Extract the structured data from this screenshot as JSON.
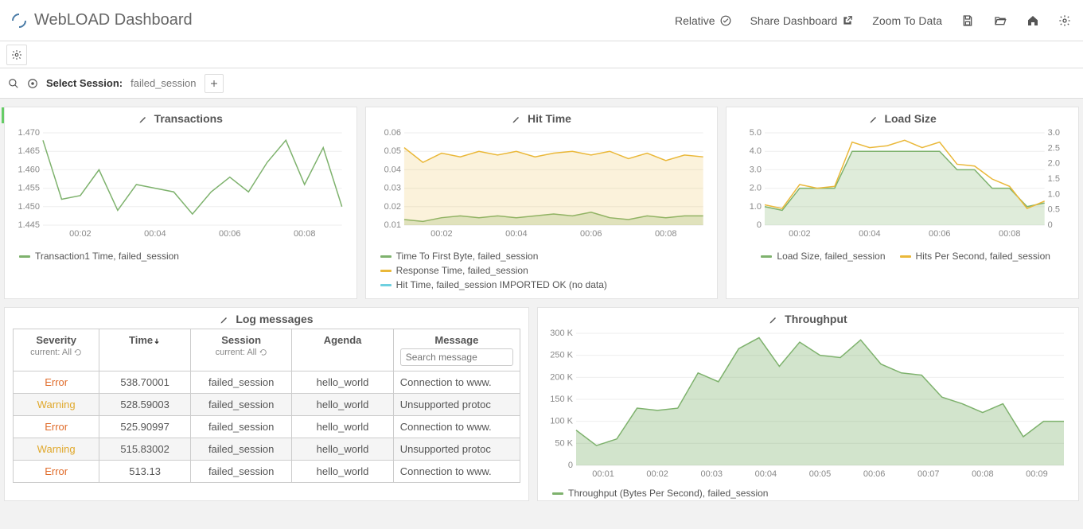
{
  "header": {
    "title": "WebLOAD Dashboard",
    "nav": {
      "relative": "Relative",
      "share": "Share Dashboard",
      "zoom": "Zoom To Data"
    }
  },
  "session": {
    "label": "Select Session:",
    "value": "failed_session"
  },
  "colors": {
    "green": "#7eb26d",
    "yellow": "#eab839",
    "cyan": "#6ed0e0",
    "grid": "#eeeeee",
    "axis": "#999999",
    "fill_green": "rgba(126,178,109,0.25)",
    "fill_yellow": "rgba(234,184,57,0.18)"
  },
  "charts": {
    "transactions": {
      "title": "Transactions",
      "y_ticks": [
        "1.445",
        "1.450",
        "1.455",
        "1.460",
        "1.465",
        "1.470"
      ],
      "y_min": 1.445,
      "y_max": 1.47,
      "x_labels": [
        "00:02",
        "00:04",
        "00:06",
        "00:08"
      ],
      "series": [
        {
          "name": "Transaction1 Time, failed_session",
          "color": "#7eb26d",
          "values": [
            1.468,
            1.452,
            1.453,
            1.46,
            1.449,
            1.456,
            1.455,
            1.454,
            1.448,
            1.454,
            1.458,
            1.454,
            1.462,
            1.468,
            1.456,
            1.466,
            1.45
          ]
        }
      ]
    },
    "hit_time": {
      "title": "Hit Time",
      "y_ticks": [
        "0.01",
        "0.02",
        "0.03",
        "0.04",
        "0.05",
        "0.06"
      ],
      "y_min": 0.01,
      "y_max": 0.06,
      "x_labels": [
        "00:02",
        "00:04",
        "00:06",
        "00:08"
      ],
      "series": [
        {
          "name": "Time To First Byte, failed_session",
          "color": "#7eb26d",
          "fill": "rgba(126,178,109,0.25)",
          "values": [
            0.013,
            0.012,
            0.014,
            0.015,
            0.014,
            0.015,
            0.014,
            0.015,
            0.016,
            0.015,
            0.017,
            0.014,
            0.013,
            0.015,
            0.014,
            0.015,
            0.015
          ]
        },
        {
          "name": "Response Time, failed_session",
          "color": "#eab839",
          "fill": "rgba(234,184,57,0.18)",
          "values": [
            0.052,
            0.044,
            0.049,
            0.047,
            0.05,
            0.048,
            0.05,
            0.047,
            0.049,
            0.05,
            0.048,
            0.05,
            0.046,
            0.049,
            0.045,
            0.048,
            0.047
          ]
        },
        {
          "name": "Hit Time, failed_session IMPORTED OK (no data)",
          "color": "#6ed0e0",
          "values": []
        }
      ]
    },
    "load_size": {
      "title": "Load Size",
      "y_ticks_left": [
        "0",
        "1.0",
        "2.0",
        "3.0",
        "4.0",
        "5.0"
      ],
      "y_ticks_right": [
        "0",
        "0.5",
        "1.0",
        "1.5",
        "2.0",
        "2.5",
        "3.0"
      ],
      "y_min": 0,
      "y_max": 5,
      "x_labels": [
        "00:02",
        "00:04",
        "00:06",
        "00:08"
      ],
      "series": [
        {
          "name": "Load Size, failed_session",
          "color": "#7eb26d",
          "fill": "rgba(126,178,109,0.25)",
          "values": [
            1.0,
            0.8,
            2.0,
            2.0,
            2.0,
            4.0,
            4.0,
            4.0,
            4.0,
            4.0,
            4.0,
            3.0,
            3.0,
            2.0,
            2.0,
            1.0,
            1.2
          ]
        },
        {
          "name": "Hits Per Second, failed_session",
          "color": "#eab839",
          "values": [
            1.1,
            0.9,
            2.2,
            2.0,
            2.1,
            4.5,
            4.2,
            4.3,
            4.6,
            4.2,
            4.5,
            3.3,
            3.2,
            2.5,
            2.1,
            0.9,
            1.3
          ]
        }
      ]
    },
    "throughput": {
      "title": "Throughput",
      "y_ticks": [
        "0",
        "50 K",
        "100 K",
        "150 K",
        "200 K",
        "250 K",
        "300 K"
      ],
      "y_min": 0,
      "y_max": 300,
      "x_labels": [
        "00:01",
        "00:02",
        "00:03",
        "00:04",
        "00:05",
        "00:06",
        "00:07",
        "00:08",
        "00:09"
      ],
      "series": [
        {
          "name": "Throughput (Bytes Per Second), failed_session",
          "color": "#7eb26d",
          "fill": "rgba(126,178,109,0.35)",
          "values": [
            80,
            45,
            60,
            130,
            125,
            130,
            210,
            190,
            265,
            290,
            225,
            280,
            250,
            245,
            285,
            230,
            210,
            205,
            155,
            140,
            120,
            140,
            65,
            100,
            100
          ]
        }
      ]
    }
  },
  "log": {
    "title": "Log messages",
    "columns": {
      "severity": "Severity",
      "severity_sub": "current: All",
      "time": "Time",
      "session": "Session",
      "session_sub": "current: All",
      "agenda": "Agenda",
      "message": "Message",
      "search_placeholder": "Search message"
    },
    "rows": [
      {
        "severity": "Error",
        "time": "538.70001",
        "session": "failed_session",
        "agenda": "hello_world",
        "message": "Connection to www."
      },
      {
        "severity": "Warning",
        "time": "528.59003",
        "session": "failed_session",
        "agenda": "hello_world",
        "message": "Unsupported protoc"
      },
      {
        "severity": "Error",
        "time": "525.90997",
        "session": "failed_session",
        "agenda": "hello_world",
        "message": "Connection to www."
      },
      {
        "severity": "Warning",
        "time": "515.83002",
        "session": "failed_session",
        "agenda": "hello_world",
        "message": "Unsupported protoc"
      },
      {
        "severity": "Error",
        "time": "513.13",
        "session": "failed_session",
        "agenda": "hello_world",
        "message": "Connection to www."
      }
    ]
  }
}
